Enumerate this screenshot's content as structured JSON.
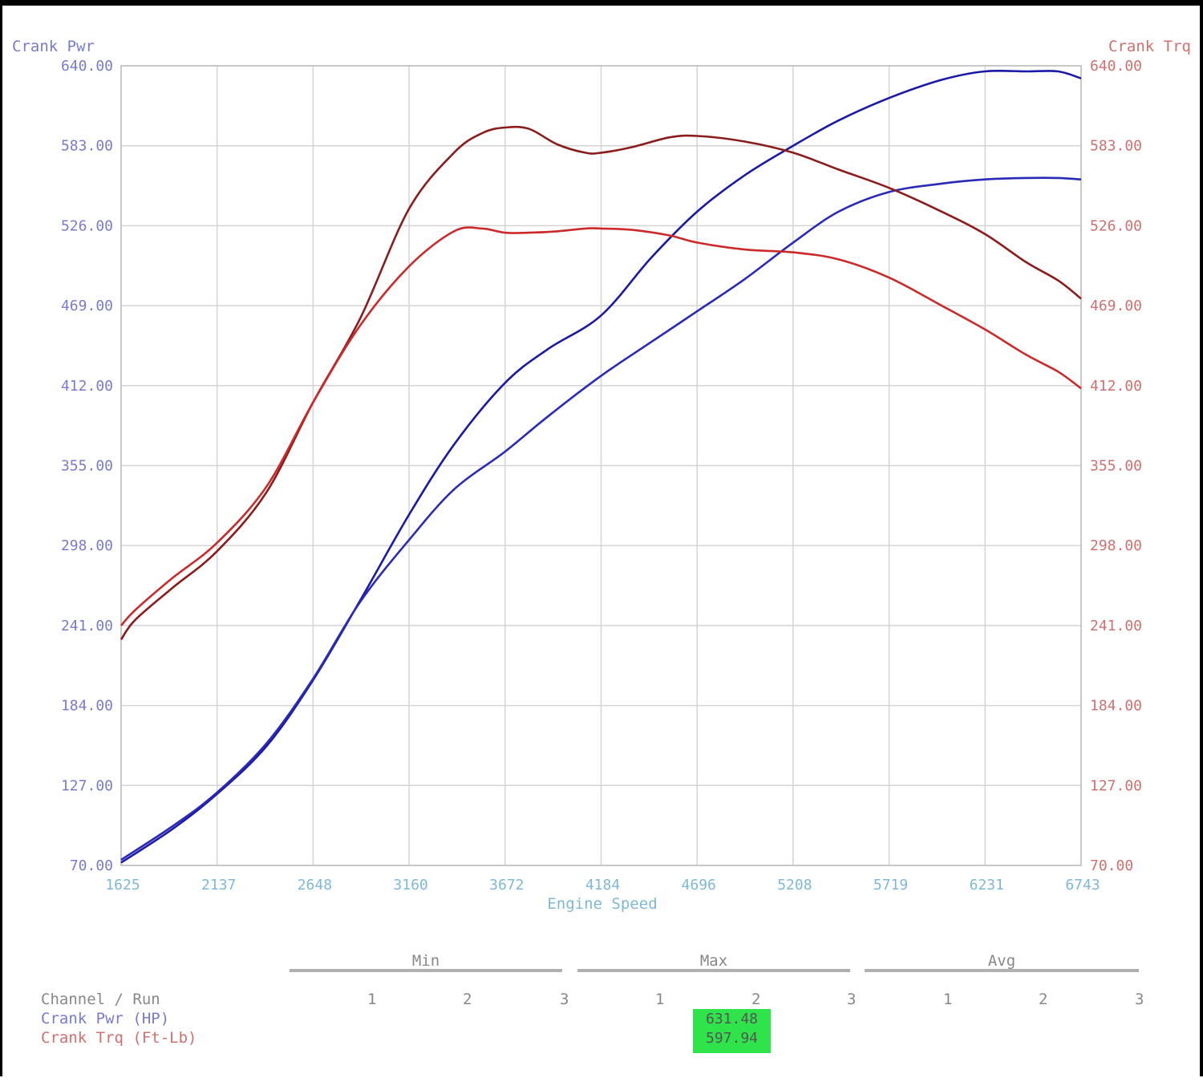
{
  "chart_data": {
    "type": "line",
    "title": "",
    "xlabel": "Engine Speed",
    "ylabel_left": "Crank Pwr",
    "ylabel_right": "Crank Trq",
    "xlim": [
      1625,
      6743
    ],
    "ylim": [
      70,
      640
    ],
    "x_ticks": [
      "1625",
      "2137",
      "2648",
      "3160",
      "3672",
      "4184",
      "4696",
      "5208",
      "5719",
      "6231",
      "6743"
    ],
    "y_ticks_left": [
      "70.00",
      "127.00",
      "184.00",
      "241.00",
      "298.00",
      "355.00",
      "412.00",
      "469.00",
      "526.00",
      "583.00",
      "640.00"
    ],
    "y_ticks_right": [
      "70.00",
      "127.00",
      "184.00",
      "241.00",
      "298.00",
      "355.00",
      "412.00",
      "469.00",
      "526.00",
      "583.00",
      "640.00"
    ],
    "grid": true,
    "series": [
      {
        "role": "power-run-a",
        "color": "#1a1aa6",
        "x": [
          1625,
          1900,
          2137,
          2400,
          2648,
          2900,
          3160,
          3400,
          3672,
          3900,
          4184,
          4450,
          4696,
          4950,
          5208,
          5450,
          5719,
          6000,
          6231,
          6450,
          6620,
          6743
        ],
        "y": [
          72,
          96,
          121,
          155,
          202,
          259,
          320,
          370,
          414,
          438,
          462,
          503,
          536,
          562,
          583,
          601,
          617,
          630,
          636,
          636,
          636,
          631
        ]
      },
      {
        "role": "power-run-b",
        "color": "#2a2ab8",
        "x": [
          1625,
          1900,
          2137,
          2400,
          2648,
          2900,
          3160,
          3400,
          3672,
          3900,
          4184,
          4450,
          4696,
          4950,
          5208,
          5450,
          5719,
          6000,
          6231,
          6450,
          6620,
          6743
        ],
        "y": [
          74,
          98,
          122,
          157,
          203,
          258,
          302,
          338,
          365,
          390,
          419,
          443,
          465,
          488,
          514,
          536,
          550,
          556,
          559,
          560,
          560,
          559
        ]
      },
      {
        "role": "torque-run-a",
        "color": "#8b1c1c",
        "x": [
          1625,
          1700,
          1900,
          2137,
          2400,
          2648,
          2900,
          3160,
          3400,
          3550,
          3672,
          3800,
          3950,
          4100,
          4184,
          4350,
          4550,
          4696,
          4950,
          5208,
          5450,
          5719,
          6000,
          6231,
          6450,
          6620,
          6743
        ],
        "y": [
          231,
          245,
          268,
          294,
          336,
          400,
          460,
          538,
          578,
          592,
          596,
          595,
          584,
          578,
          578,
          582,
          589,
          590,
          586,
          578,
          566,
          553,
          536,
          520,
          500,
          487,
          474
        ]
      },
      {
        "role": "torque-run-b",
        "color": "#cc2a2a",
        "x": [
          1625,
          1700,
          1900,
          2137,
          2400,
          2648,
          2900,
          3160,
          3400,
          3550,
          3672,
          3800,
          3950,
          4100,
          4184,
          4350,
          4550,
          4696,
          4950,
          5208,
          5450,
          5719,
          6000,
          6231,
          6450,
          6620,
          6743
        ],
        "y": [
          241,
          252,
          275,
          300,
          340,
          400,
          455,
          497,
          522,
          524,
          521,
          521,
          522,
          524,
          524,
          523,
          519,
          514,
          509,
          507,
          502,
          489,
          469,
          452,
          434,
          422,
          410
        ]
      }
    ]
  },
  "summary": {
    "groups": [
      "Min",
      "Max",
      "Avg"
    ],
    "run_numbers": [
      "1",
      "2",
      "3"
    ],
    "channel_header": "Channel / Run",
    "channels": [
      {
        "label": "Crank Pwr (HP)",
        "color": "#7a7ad0"
      },
      {
        "label": "Crank Trq (Ft-Lb)",
        "color": "#d07070"
      }
    ],
    "max_run2_power": "631.48",
    "max_run2_torque": "597.94",
    "highlight_color": "#2ee44a"
  }
}
